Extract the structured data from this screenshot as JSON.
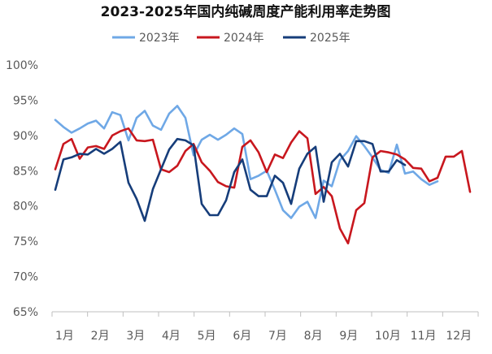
{
  "chart_data": {
    "type": "line",
    "title": "2023-2025年国内纯碱周度产能利用率走势图",
    "xlabel": "",
    "ylabel": "",
    "ylim": [
      65,
      100
    ],
    "yticks": [
      65,
      70,
      75,
      80,
      85,
      90,
      95,
      100
    ],
    "ytick_labels": [
      "65%",
      "70%",
      "75%",
      "80%",
      "85%",
      "90%",
      "95%",
      "100%"
    ],
    "xticks": [
      1,
      5.35,
      9.7,
      14.05,
      18.4,
      22.75,
      27.1,
      31.45,
      35.8,
      40.15,
      44.5,
      48.85
    ],
    "xtick_labels": [
      "1月",
      "2月",
      "3月",
      "4月",
      "5月",
      "6月",
      "7月",
      "8月",
      "9月",
      "10月",
      "11月",
      "12月"
    ],
    "legend_position": "top",
    "grid": false,
    "series": [
      {
        "name": "2023年",
        "color": "#6fa8e6",
        "x": [
          1,
          2,
          3,
          4,
          5,
          6,
          7,
          8,
          9,
          10,
          11,
          12,
          13,
          14,
          15,
          16,
          17,
          18,
          19,
          20,
          21,
          22,
          23,
          24,
          25,
          26,
          27,
          28,
          29,
          30,
          31,
          32,
          33,
          34,
          35,
          36,
          37,
          38,
          39,
          40,
          41,
          42,
          43,
          44,
          45,
          46,
          47,
          48,
          49,
          50,
          51,
          52
        ],
        "values": [
          92.2,
          91.2,
          90.4,
          91.0,
          91.7,
          92.1,
          91.0,
          93.3,
          92.9,
          89.3,
          92.5,
          93.5,
          91.4,
          90.8,
          93.1,
          94.2,
          92.5,
          87.2,
          89.4,
          90.1,
          89.4,
          90.1,
          91.0,
          90.2,
          83.8,
          84.3,
          85.0,
          82.3,
          79.4,
          78.3,
          79.9,
          80.6,
          78.3,
          83.6,
          82.8,
          86.5,
          87.8,
          89.9,
          88.5,
          86.9,
          85.1,
          84.7,
          88.7,
          84.6,
          84.9,
          83.8,
          83.0,
          83.5,
          null,
          null,
          null,
          null
        ]
      },
      {
        "name": "2024年",
        "color": "#c8171e",
        "x": [
          1,
          2,
          3,
          4,
          5,
          6,
          7,
          8,
          9,
          10,
          11,
          12,
          13,
          14,
          15,
          16,
          17,
          18,
          19,
          20,
          21,
          22,
          23,
          24,
          25,
          26,
          27,
          28,
          29,
          30,
          31,
          32,
          33,
          34,
          35,
          36,
          37,
          38,
          39,
          40,
          41,
          42,
          43,
          44,
          45,
          46,
          47,
          48,
          49,
          50,
          51,
          52
        ],
        "values": [
          85.2,
          88.8,
          89.5,
          86.7,
          88.3,
          88.5,
          88.1,
          90.0,
          90.6,
          91.0,
          89.3,
          89.2,
          89.4,
          85.2,
          84.8,
          85.7,
          87.8,
          88.8,
          86.2,
          85.0,
          83.4,
          82.8,
          82.6,
          88.4,
          89.3,
          87.6,
          84.8,
          87.3,
          86.8,
          89.0,
          90.6,
          89.6,
          81.7,
          82.7,
          81.4,
          76.8,
          74.7,
          79.4,
          80.4,
          86.9,
          87.8,
          87.6,
          87.3,
          86.6,
          85.4,
          85.3,
          83.5,
          84.0,
          87.0,
          87.0,
          87.8,
          82.0
        ]
      },
      {
        "name": "2025年",
        "color": "#163d7a",
        "x": [
          1,
          2,
          3,
          4,
          5,
          6,
          7,
          8,
          9,
          10,
          11,
          12,
          13,
          14,
          15,
          16,
          17,
          18,
          19,
          20,
          21,
          22,
          23,
          24,
          25,
          26,
          27,
          28,
          29,
          30,
          31,
          32,
          33,
          34,
          35,
          36,
          37,
          38,
          39,
          40,
          41,
          42,
          43,
          44,
          45,
          46,
          47,
          48,
          49,
          50,
          51,
          52
        ],
        "values": [
          82.3,
          86.6,
          86.9,
          87.4,
          87.3,
          88.1,
          87.4,
          88.1,
          89.1,
          83.3,
          81.0,
          77.9,
          82.4,
          85.2,
          88.0,
          89.5,
          89.3,
          88.6,
          80.3,
          78.7,
          78.7,
          80.8,
          84.8,
          86.6,
          82.3,
          81.4,
          81.4,
          84.3,
          83.3,
          80.3,
          85.3,
          87.4,
          88.4,
          80.6,
          86.2,
          87.4,
          85.6,
          89.2,
          89.2,
          88.8,
          84.9,
          84.9,
          86.5,
          85.8,
          null,
          null,
          null,
          null,
          null,
          null,
          null,
          null
        ]
      }
    ]
  }
}
